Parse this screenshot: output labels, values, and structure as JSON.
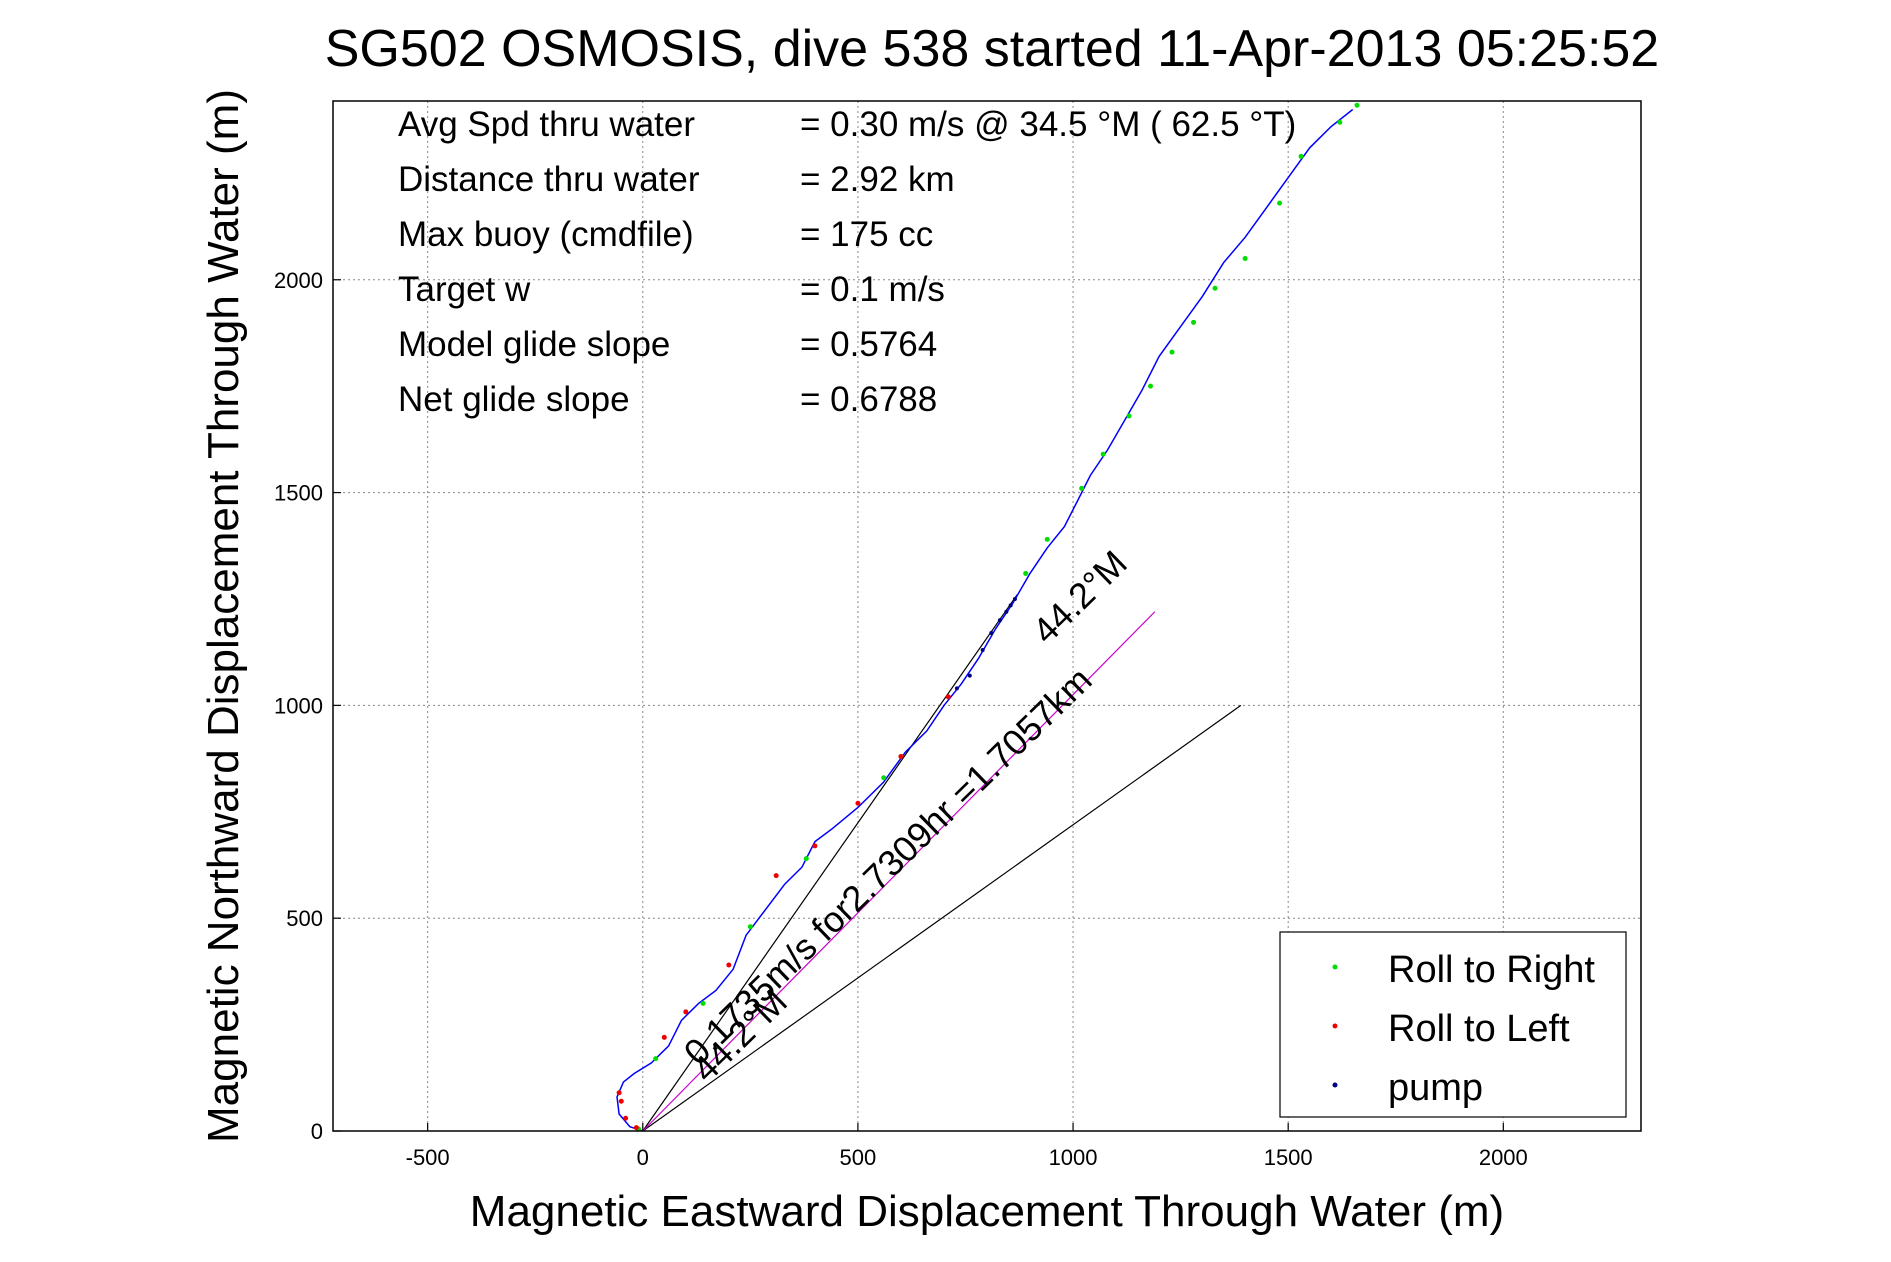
{
  "chart_data": {
    "type": "line",
    "title": "SG502 OSMOSIS, dive 538 started 11-Apr-2013 05:25:52",
    "xlabel": "Magnetic Eastward Displacement Through Water (m)",
    "ylabel": "Magnetic Northward Displacement Through Water (m)",
    "xlim": [
      -720,
      2320
    ],
    "ylim": [
      0,
      2420
    ],
    "xticks": [
      "-500",
      "0",
      "500",
      "1000",
      "1500",
      "2000"
    ],
    "xtick_values": [
      -500,
      0,
      500,
      1000,
      1500,
      2000
    ],
    "yticks": [
      "0",
      "500",
      "1000",
      "1500",
      "2000"
    ],
    "ytick_values": [
      0,
      500,
      1000,
      1500,
      2000
    ],
    "grid": true,
    "stats": [
      {
        "label": "Avg Spd thru water",
        "value": "=  0.30 m/s @  34.5 °M ( 62.5 °T)"
      },
      {
        "label": "Distance thru water",
        "value": "=  2.92 km"
      },
      {
        "label": "Max buoy (cmdfile)",
        "value": "= 175 cc"
      },
      {
        "label": "Target w",
        "value": "= 0.1 m/s"
      },
      {
        "label": "Model glide slope",
        "value": "= 0.5764"
      },
      {
        "label": "Net glide slope",
        "value": "= 0.6788"
      }
    ],
    "legend": {
      "position": "bottom-right",
      "entries": [
        {
          "label": "Roll to Right",
          "color": "#00dd00"
        },
        {
          "label": "Roll to Left",
          "color": "#ee0000"
        },
        {
          "label": "pump",
          "color": "#000080"
        }
      ]
    },
    "track": {
      "name": "track",
      "color": "#0000ff",
      "points": [
        [
          0,
          0
        ],
        [
          -30,
          10
        ],
        [
          -55,
          40
        ],
        [
          -60,
          80
        ],
        [
          -45,
          115
        ],
        [
          -20,
          135
        ],
        [
          20,
          160
        ],
        [
          60,
          200
        ],
        [
          90,
          260
        ],
        [
          130,
          300
        ],
        [
          170,
          330
        ],
        [
          210,
          380
        ],
        [
          240,
          460
        ],
        [
          270,
          500
        ],
        [
          330,
          580
        ],
        [
          370,
          620
        ],
        [
          400,
          680
        ],
        [
          440,
          710
        ],
        [
          500,
          760
        ],
        [
          560,
          820
        ],
        [
          610,
          890
        ],
        [
          660,
          940
        ],
        [
          700,
          1000
        ],
        [
          740,
          1050
        ],
        [
          780,
          1110
        ],
        [
          820,
          1180
        ],
        [
          860,
          1240
        ],
        [
          900,
          1310
        ],
        [
          940,
          1370
        ],
        [
          980,
          1420
        ],
        [
          1010,
          1480
        ],
        [
          1040,
          1540
        ],
        [
          1080,
          1600
        ],
        [
          1120,
          1670
        ],
        [
          1160,
          1740
        ],
        [
          1200,
          1820
        ],
        [
          1250,
          1890
        ],
        [
          1300,
          1960
        ],
        [
          1350,
          2040
        ],
        [
          1400,
          2100
        ],
        [
          1450,
          2170
        ],
        [
          1500,
          2240
        ],
        [
          1550,
          2310
        ],
        [
          1600,
          2360
        ],
        [
          1650,
          2400
        ]
      ]
    },
    "roll_right_points": [
      [
        -10,
        5
      ],
      [
        30,
        170
      ],
      [
        140,
        300
      ],
      [
        250,
        480
      ],
      [
        380,
        640
      ],
      [
        560,
        830
      ],
      [
        890,
        1310
      ],
      [
        940,
        1390
      ],
      [
        1020,
        1510
      ],
      [
        1070,
        1590
      ],
      [
        1130,
        1680
      ],
      [
        1180,
        1750
      ],
      [
        1230,
        1830
      ],
      [
        1280,
        1900
      ],
      [
        1330,
        1980
      ],
      [
        1400,
        2050
      ],
      [
        1480,
        2180
      ],
      [
        1530,
        2290
      ],
      [
        1620,
        2370
      ],
      [
        1660,
        2410
      ]
    ],
    "roll_left_points": [
      [
        -50,
        70
      ],
      [
        -55,
        90
      ],
      [
        -40,
        30
      ],
      [
        -15,
        8
      ],
      [
        50,
        220
      ],
      [
        100,
        280
      ],
      [
        200,
        390
      ],
      [
        310,
        600
      ],
      [
        400,
        670
      ],
      [
        500,
        770
      ],
      [
        600,
        880
      ],
      [
        710,
        1020
      ]
    ],
    "pump_points": [
      [
        730,
        1040
      ],
      [
        760,
        1070
      ],
      [
        790,
        1130
      ],
      [
        810,
        1170
      ],
      [
        830,
        1200
      ],
      [
        845,
        1220
      ],
      [
        855,
        1235
      ],
      [
        865,
        1250
      ]
    ],
    "reference_lines": [
      {
        "name": "direct-line-to-end",
        "color": "#000000",
        "from": [
          0,
          0
        ],
        "to": [
          870,
          1260
        ]
      },
      {
        "name": "current-vector",
        "color": "#000000",
        "from": [
          0,
          0
        ],
        "to": [
          1390,
          1000
        ]
      },
      {
        "name": "depth-average-line",
        "color": "#cc00cc",
        "from": [
          0,
          0
        ],
        "to": [
          1190,
          1220
        ]
      }
    ],
    "annotations": [
      {
        "text": "0.1735m/s for2.7309hr =1.7057km",
        "x": 130,
        "y": 150,
        "angle": -44.2
      },
      {
        "text": "44.2°M",
        "x": 150,
        "y": 110,
        "angle": -44.2
      },
      {
        "text": "44.2°M",
        "x": 940,
        "y": 1140,
        "angle": -44.2
      }
    ]
  }
}
